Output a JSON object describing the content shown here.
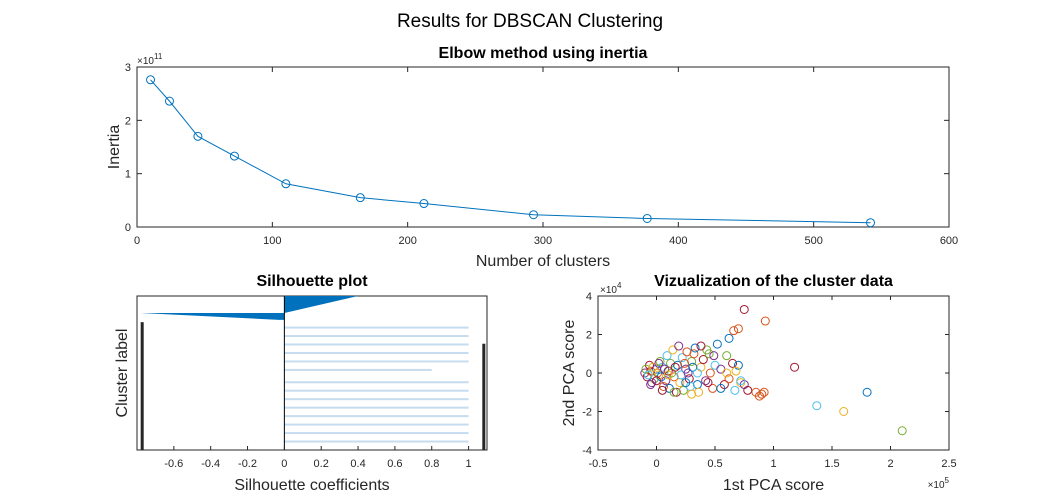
{
  "figure": {
    "title": "Results for DBSCAN Clustering"
  },
  "chart_data": [
    {
      "type": "line",
      "title": "Elbow method using inertia",
      "xlabel": "Number of clusters",
      "ylabel": "Inertia",
      "y_exponent": "×10",
      "y_exponent_power": "11",
      "xlim": [
        0,
        600
      ],
      "ylim": [
        0,
        3
      ],
      "xticks": [
        "0",
        "100",
        "200",
        "300",
        "400",
        "500",
        "600"
      ],
      "yticks": [
        "0",
        "1",
        "2",
        "3"
      ],
      "marker": "circle",
      "color": "#0072BD",
      "x": [
        10,
        24,
        45,
        72,
        110,
        165,
        212,
        293,
        377,
        542
      ],
      "y": [
        2.76,
        2.36,
        1.7,
        1.33,
        0.81,
        0.55,
        0.44,
        0.23,
        0.16,
        0.08
      ]
    },
    {
      "type": "bar",
      "orientation": "horizontal",
      "title": "Silhouette plot",
      "xlabel": "Silhouette coefficients",
      "ylabel": "Cluster label",
      "xlim": [
        -0.8,
        1.1
      ],
      "xticks": [
        "-0.6",
        "-0.4",
        "-0.2",
        "0",
        "0.2",
        "0.4",
        "0.6",
        "0.8",
        "1"
      ],
      "color": "#0072BD",
      "light_color": "#c6dcef",
      "wedges": [
        {
          "from": 0.0,
          "to": 0.11,
          "start": 0,
          "end": 0.4
        },
        {
          "from": 0.11,
          "to": 0.155,
          "start": -0.03,
          "end": -0.78
        }
      ],
      "rows": [
        {
          "pos": 0.205,
          "value": 1.0
        },
        {
          "pos": 0.26,
          "value": 1.0
        },
        {
          "pos": 0.315,
          "value": 1.0
        },
        {
          "pos": 0.37,
          "value": 1.0
        },
        {
          "pos": 0.425,
          "value": 1.0
        },
        {
          "pos": 0.48,
          "value": 0.8
        },
        {
          "pos": 0.56,
          "value": 1.0
        },
        {
          "pos": 0.615,
          "value": 1.0
        },
        {
          "pos": 0.67,
          "value": 1.0
        },
        {
          "pos": 0.725,
          "value": 1.0
        },
        {
          "pos": 0.78,
          "value": 1.0
        },
        {
          "pos": 0.835,
          "value": 1.0
        },
        {
          "pos": 0.89,
          "value": 1.0
        },
        {
          "pos": 0.945,
          "value": 1.0
        }
      ],
      "edge_bar": {
        "value": -0.78,
        "from": 0.17,
        "to": 1.0
      },
      "right_bar": {
        "value": 1.08,
        "from": 0.31,
        "to": 1.0
      }
    },
    {
      "type": "scatter",
      "title": "Vizualization of the cluster data",
      "xlabel": "1st PCA score",
      "ylabel": "2nd PCA score",
      "x_exponent": "×10",
      "x_exponent_power": "5",
      "y_exponent": "×10",
      "y_exponent_power": "4",
      "xlim": [
        -0.5,
        2.5
      ],
      "ylim": [
        -4,
        4
      ],
      "xticks": [
        "-0.5",
        "0",
        "0.5",
        "1",
        "1.5",
        "2",
        "2.5"
      ],
      "yticks": [
        "-4",
        "-2",
        "0",
        "2",
        "4"
      ],
      "marker": "open-circle",
      "palette": [
        "#0072BD",
        "#D95319",
        "#EDB120",
        "#7E2F8E",
        "#77AC30",
        "#4DBEEE",
        "#A2142F"
      ],
      "points": [
        [
          -0.1,
          0.0,
          3
        ],
        [
          -0.08,
          -0.2,
          6
        ],
        [
          -0.05,
          0.1,
          1
        ],
        [
          -0.02,
          -0.3,
          4
        ],
        [
          0.0,
          0.2,
          0
        ],
        [
          0.02,
          -0.1,
          2
        ],
        [
          0.05,
          0.3,
          5
        ],
        [
          0.08,
          -0.4,
          3
        ],
        [
          0.1,
          0.1,
          6
        ],
        [
          0.12,
          0.5,
          4
        ],
        [
          0.15,
          -0.2,
          1
        ],
        [
          0.18,
          0.4,
          0
        ],
        [
          0.2,
          -0.5,
          2
        ],
        [
          0.22,
          0.8,
          5
        ],
        [
          0.25,
          0.2,
          3
        ],
        [
          0.28,
          -0.3,
          6
        ],
        [
          0.3,
          0.6,
          4
        ],
        [
          0.32,
          1.0,
          1
        ],
        [
          0.35,
          -0.6,
          0
        ],
        [
          0.38,
          0.3,
          2
        ],
        [
          -0.06,
          0.4,
          6
        ],
        [
          -0.04,
          -0.5,
          3
        ],
        [
          0.03,
          0.6,
          4
        ],
        [
          0.06,
          -0.7,
          1
        ],
        [
          0.09,
          0.9,
          5
        ],
        [
          0.11,
          -0.8,
          0
        ],
        [
          0.14,
          1.2,
          2
        ],
        [
          0.17,
          -1.0,
          6
        ],
        [
          0.19,
          1.4,
          3
        ],
        [
          0.23,
          -0.9,
          4
        ],
        [
          0.26,
          1.1,
          1
        ],
        [
          0.29,
          -0.7,
          5
        ],
        [
          0.33,
          1.3,
          0
        ],
        [
          0.36,
          -1.0,
          2
        ],
        [
          0.4,
          0.7,
          6
        ],
        [
          0.42,
          -0.4,
          3
        ],
        [
          0.45,
          1.0,
          4
        ],
        [
          0.48,
          -0.8,
          1
        ],
        [
          0.5,
          0.4,
          5
        ],
        [
          0.52,
          1.5,
          0
        ],
        [
          0.01,
          0.0,
          1
        ],
        [
          0.04,
          -0.2,
          0
        ],
        [
          0.07,
          0.2,
          3
        ],
        [
          0.1,
          -0.1,
          2
        ],
        [
          0.13,
          0.0,
          4
        ],
        [
          0.16,
          0.3,
          6
        ],
        [
          0.21,
          -0.1,
          5
        ],
        [
          0.24,
          0.5,
          1
        ],
        [
          0.27,
          0.0,
          3
        ],
        [
          0.31,
          0.3,
          0
        ],
        [
          -0.09,
          0.2,
          4
        ],
        [
          -0.07,
          -0.1,
          5
        ],
        [
          -0.03,
          0.3,
          2
        ],
        [
          0.0,
          -0.4,
          6
        ],
        [
          0.02,
          0.5,
          3
        ],
        [
          0.55,
          0.2,
          3
        ],
        [
          0.58,
          -0.6,
          6
        ],
        [
          0.6,
          0.9,
          4
        ],
        [
          0.62,
          -0.3,
          1
        ],
        [
          0.65,
          0.5,
          6
        ],
        [
          0.67,
          -0.9,
          5
        ],
        [
          0.7,
          0.4,
          0
        ],
        [
          0.72,
          -0.5,
          2
        ],
        [
          0.75,
          -0.6,
          3
        ],
        [
          0.78,
          -0.9,
          6
        ],
        [
          0.62,
          1.8,
          0
        ],
        [
          0.66,
          2.2,
          1
        ],
        [
          0.7,
          2.3,
          1
        ],
        [
          0.75,
          3.3,
          6
        ],
        [
          0.93,
          2.7,
          1
        ],
        [
          0.85,
          -1.0,
          1
        ],
        [
          0.88,
          -1.2,
          1
        ],
        [
          0.9,
          -1.1,
          1
        ],
        [
          0.92,
          -1.0,
          1
        ],
        [
          1.18,
          0.3,
          6
        ],
        [
          1.37,
          -1.7,
          5
        ],
        [
          1.6,
          -2.0,
          2
        ],
        [
          1.8,
          -1.0,
          0
        ],
        [
          2.1,
          -3.0,
          4
        ],
        [
          0.6,
          0.0,
          2
        ],
        [
          0.68,
          0.1,
          2
        ],
        [
          0.72,
          -0.4,
          5
        ],
        [
          0.55,
          -0.8,
          0
        ],
        [
          0.44,
          -0.5,
          6
        ],
        [
          -0.05,
          -0.6,
          3
        ],
        [
          0.05,
          -0.9,
          6
        ],
        [
          0.15,
          -1.0,
          4
        ],
        [
          0.25,
          -0.5,
          0
        ],
        [
          0.35,
          0.0,
          5
        ],
        [
          0.46,
          0.0,
          1
        ],
        [
          0.49,
          0.9,
          3
        ],
        [
          0.43,
          1.2,
          4
        ],
        [
          0.38,
          1.4,
          6
        ],
        [
          0.3,
          -1.1,
          2
        ]
      ]
    }
  ]
}
